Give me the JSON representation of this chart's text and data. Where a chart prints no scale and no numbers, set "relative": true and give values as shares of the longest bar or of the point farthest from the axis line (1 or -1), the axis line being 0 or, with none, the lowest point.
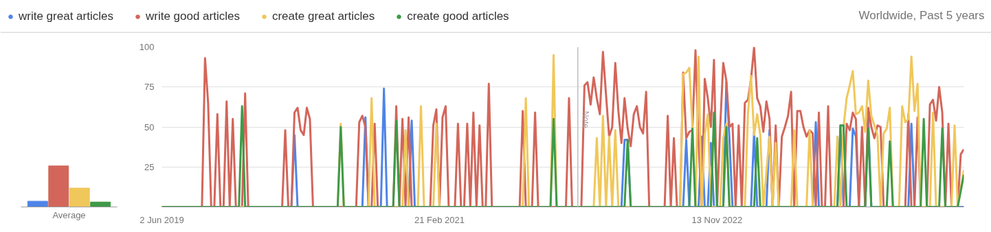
{
  "chart_data": [
    {
      "type": "bar",
      "xlabel": "Average",
      "relative": true,
      "categories": [
        null,
        null,
        null,
        null
      ],
      "values": [
        0.14,
        1,
        0.46,
        0.12
      ],
      "colors": [
        "#4f84e8",
        "#d3665a",
        "#f0c75a",
        "#3f9a47"
      ]
    },
    {
      "type": "line",
      "annotations": [
        "Worldwide, Past 5 years"
      ],
      "legend": "top",
      "grid": "y",
      "xlim": [
        "2019-06-02",
        "2024-05-26"
      ],
      "ylim": [
        0,
        100
      ],
      "xticks": [
        {
          "value": "2019-06-02",
          "label": "2 Jun 2019"
        },
        {
          "value": "2021-02-21",
          "label": "21 Feb 2021"
        },
        {
          "value": "2022-11-13",
          "label": "13 Nov 2022"
        }
      ],
      "yticks": [
        25,
        50,
        75,
        100
      ],
      "ref_lines": [
        {
          "axis": "x",
          "value": "2022-01-01",
          "label": "Note"
        }
      ],
      "series": [
        {
          "name": "write great articles",
          "color": "#4f84e8",
          "x": [
            "2019-06-02",
            "2020-03-22",
            "2020-03-29",
            "2020-04-05",
            "2020-08-30",
            "2020-09-06",
            "2020-09-13",
            "2020-10-11",
            "2020-10-18",
            "2020-10-25",
            "2020-12-13",
            "2020-12-20",
            "2020-12-27",
            "2022-04-10",
            "2022-04-17",
            "2022-04-24",
            "2022-05-01",
            "2022-08-28",
            "2022-09-04",
            "2022-09-11",
            "2022-10-02",
            "2022-10-09",
            "2022-10-16",
            "2022-10-23",
            "2022-10-30",
            "2022-11-06",
            "2022-11-27",
            "2022-12-04",
            "2022-12-11",
            "2022-12-18",
            "2023-01-29",
            "2023-02-05",
            "2023-02-12",
            "2023-03-05",
            "2023-03-12",
            "2023-03-19",
            "2023-06-18",
            "2023-06-25",
            "2023-07-02",
            "2023-08-13",
            "2023-08-20",
            "2023-08-27",
            "2023-09-10",
            "2023-09-17",
            "2023-09-24",
            "2023-10-01",
            "2023-10-15",
            "2023-10-22",
            "2023-10-29",
            "2024-01-21",
            "2024-01-28",
            "2024-02-04",
            "2024-05-26"
          ],
          "values": [
            0,
            0,
            45,
            0,
            0,
            56,
            0,
            0,
            74,
            0,
            0,
            54,
            0,
            0,
            42,
            42,
            0,
            0,
            42,
            0,
            0,
            44,
            0,
            0,
            40,
            0,
            0,
            78,
            43,
            0,
            0,
            47,
            0,
            0,
            48,
            0,
            0,
            53,
            0,
            0,
            51,
            0,
            0,
            49,
            44,
            0,
            0,
            56,
            0,
            0,
            52,
            0,
            0
          ]
        },
        {
          "name": "write good articles",
          "color": "#d3665a",
          "x": [
            "2019-06-02",
            "2019-09-01",
            "2019-09-08",
            "2019-09-15",
            "2019-09-22",
            "2019-09-29",
            "2019-10-06",
            "2019-10-13",
            "2019-10-20",
            "2019-10-27",
            "2019-11-03",
            "2019-11-10",
            "2019-11-17",
            "2019-12-01",
            "2019-12-08",
            "2019-12-15",
            "2020-03-01",
            "2020-03-08",
            "2020-03-15",
            "2020-03-22",
            "2020-03-29",
            "2020-04-05",
            "2020-04-12",
            "2020-04-19",
            "2020-04-26",
            "2020-05-03",
            "2020-05-10",
            "2020-08-16",
            "2020-08-23",
            "2020-08-30",
            "2020-09-06",
            "2020-09-13",
            "2020-09-20",
            "2020-09-27",
            "2020-10-04",
            "2020-11-08",
            "2020-11-15",
            "2020-11-22",
            "2020-11-29",
            "2020-12-06",
            "2020-12-13",
            "2020-12-20",
            "2021-01-31",
            "2021-02-07",
            "2021-02-14",
            "2021-02-21",
            "2021-02-28",
            "2021-03-07",
            "2021-03-14",
            "2021-03-28",
            "2021-04-04",
            "2021-04-11",
            "2021-04-18",
            "2021-04-25",
            "2021-05-02",
            "2021-05-09",
            "2021-05-16",
            "2021-05-23",
            "2021-05-30",
            "2021-06-06",
            "2021-06-13",
            "2021-06-20",
            "2021-08-22",
            "2021-08-29",
            "2021-09-05",
            "2021-09-19",
            "2021-09-26",
            "2021-10-03",
            "2021-12-05",
            "2021-12-12",
            "2021-12-19",
            "2022-01-09",
            "2022-01-16",
            "2022-01-23",
            "2022-01-30",
            "2022-02-06",
            "2022-02-13",
            "2022-02-20",
            "2022-02-27",
            "2022-03-06",
            "2022-03-13",
            "2022-03-20",
            "2022-03-27",
            "2022-04-03",
            "2022-04-10",
            "2022-04-17",
            "2022-04-24",
            "2022-05-01",
            "2022-05-08",
            "2022-05-15",
            "2022-05-22",
            "2022-05-29",
            "2022-06-05",
            "2022-06-12",
            "2022-07-17",
            "2022-07-24",
            "2022-07-31",
            "2022-08-07",
            "2022-08-14",
            "2022-08-21",
            "2022-08-28",
            "2022-09-04",
            "2022-09-11",
            "2022-09-18",
            "2022-09-25",
            "2022-10-02",
            "2022-10-09",
            "2022-10-16",
            "2022-10-23",
            "2022-10-30",
            "2022-11-06",
            "2022-11-13",
            "2022-11-20",
            "2022-11-27",
            "2022-12-04",
            "2022-12-11",
            "2022-12-18",
            "2022-12-25",
            "2023-01-01",
            "2023-01-08",
            "2023-01-15",
            "2023-01-22",
            "2023-01-29",
            "2023-02-05",
            "2023-02-12",
            "2023-02-19",
            "2023-02-26",
            "2023-03-05",
            "2023-03-12",
            "2023-03-19",
            "2023-03-26",
            "2023-04-02",
            "2023-04-09",
            "2023-04-16",
            "2023-04-23",
            "2023-04-30",
            "2023-05-07",
            "2023-05-14",
            "2023-05-21",
            "2023-05-28",
            "2023-06-04",
            "2023-06-11",
            "2023-06-18",
            "2023-06-25",
            "2023-07-02",
            "2023-07-09",
            "2023-07-16",
            "2023-07-23",
            "2023-07-30",
            "2023-08-27",
            "2023-09-03",
            "2023-09-10",
            "2023-09-17",
            "2023-09-24",
            "2023-10-01",
            "2023-10-08",
            "2023-10-15",
            "2023-10-22",
            "2023-10-29",
            "2023-11-05",
            "2023-11-12",
            "2023-11-19",
            "2023-11-26",
            "2024-01-14",
            "2024-01-21",
            "2024-01-28",
            "2024-02-04",
            "2024-02-11",
            "2024-02-18",
            "2024-03-03",
            "2024-03-10",
            "2024-03-17",
            "2024-03-24",
            "2024-03-31",
            "2024-04-07",
            "2024-04-14",
            "2024-04-21",
            "2024-04-28",
            "2024-05-12",
            "2024-05-19",
            "2024-05-26"
          ],
          "values": [
            0,
            0,
            93,
            65,
            0,
            0,
            58,
            0,
            0,
            66,
            0,
            55,
            0,
            0,
            71,
            0,
            0,
            48,
            0,
            0,
            59,
            62,
            48,
            45,
            62,
            55,
            0,
            0,
            53,
            57,
            50,
            0,
            0,
            52,
            0,
            0,
            63,
            0,
            55,
            0,
            56,
            0,
            0,
            51,
            61,
            0,
            56,
            63,
            0,
            0,
            52,
            0,
            0,
            52,
            0,
            59,
            0,
            51,
            0,
            0,
            77,
            0,
            0,
            60,
            0,
            0,
            59,
            0,
            0,
            68,
            0,
            0,
            76,
            78,
            64,
            81,
            68,
            58,
            97,
            70,
            44,
            50,
            90,
            60,
            40,
            68,
            49,
            38,
            58,
            63,
            50,
            46,
            72,
            0,
            0,
            57,
            0,
            43,
            0,
            0,
            84,
            43,
            47,
            48,
            98,
            40,
            0,
            80,
            68,
            50,
            92,
            0,
            50,
            90,
            79,
            50,
            52,
            0,
            51,
            0,
            65,
            67,
            80,
            100,
            68,
            63,
            47,
            66,
            55,
            0,
            51,
            0,
            44,
            50,
            57,
            72,
            0,
            60,
            60,
            50,
            44,
            48,
            46,
            0,
            59,
            0,
            0,
            63,
            0,
            0,
            52,
            48,
            59,
            55,
            0,
            50,
            0,
            62,
            50,
            43,
            51,
            50,
            0,
            0,
            58,
            0,
            0,
            56,
            0,
            0,
            64,
            67,
            54,
            75,
            59,
            0,
            52,
            0,
            0,
            33,
            36
          ]
        },
        {
          "name": "create great articles",
          "color": "#f0c75a",
          "x": [
            "2019-06-02",
            "2020-07-05",
            "2020-07-12",
            "2020-07-19",
            "2020-09-13",
            "2020-09-20",
            "2020-09-27",
            "2020-11-29",
            "2020-12-06",
            "2020-12-13",
            "2021-01-03",
            "2021-01-10",
            "2021-01-17",
            "2021-02-07",
            "2021-02-14",
            "2021-02-21",
            "2021-08-29",
            "2021-09-05",
            "2021-09-12",
            "2021-10-31",
            "2021-11-07",
            "2021-11-14",
            "2022-02-06",
            "2022-02-13",
            "2022-02-20",
            "2022-02-27",
            "2022-03-06",
            "2022-03-13",
            "2022-03-20",
            "2022-03-27",
            "2022-04-03",
            "2022-08-21",
            "2022-08-28",
            "2022-09-04",
            "2022-09-11",
            "2022-09-18",
            "2022-09-25",
            "2022-10-02",
            "2022-10-09",
            "2022-10-16",
            "2022-10-23",
            "2022-10-30",
            "2022-11-20",
            "2022-11-27",
            "2022-12-04",
            "2022-12-11",
            "2023-01-15",
            "2023-01-22",
            "2023-01-29",
            "2023-02-05",
            "2023-02-12",
            "2023-02-19",
            "2023-02-26",
            "2023-03-12",
            "2023-03-19",
            "2023-03-26",
            "2023-04-02",
            "2023-04-30",
            "2023-05-07",
            "2023-05-14",
            "2023-06-04",
            "2023-06-11",
            "2023-06-18",
            "2023-08-06",
            "2023-08-13",
            "2023-08-20",
            "2023-08-27",
            "2023-09-03",
            "2023-09-10",
            "2023-09-17",
            "2023-09-24",
            "2023-10-01",
            "2023-10-08",
            "2023-10-15",
            "2023-10-22",
            "2023-10-29",
            "2023-11-05",
            "2023-11-12",
            "2023-11-19",
            "2023-11-26",
            "2023-12-03",
            "2023-12-10",
            "2023-12-17",
            "2023-12-31",
            "2024-01-07",
            "2024-01-14",
            "2024-01-21",
            "2024-01-28",
            "2024-02-04",
            "2024-02-11",
            "2024-02-18",
            "2024-03-10",
            "2024-03-17",
            "2024-03-24",
            "2024-04-28",
            "2024-05-05",
            "2024-05-12",
            "2024-05-26"
          ],
          "values": [
            0,
            0,
            52,
            0,
            0,
            68,
            0,
            0,
            48,
            0,
            0,
            63,
            0,
            0,
            52,
            0,
            0,
            68,
            0,
            0,
            95,
            0,
            0,
            43,
            0,
            57,
            0,
            44,
            0,
            48,
            0,
            0,
            83,
            84,
            87,
            50,
            0,
            94,
            0,
            45,
            58,
            0,
            0,
            43,
            52,
            0,
            0,
            58,
            82,
            45,
            58,
            45,
            0,
            44,
            0,
            40,
            0,
            0,
            48,
            0,
            0,
            48,
            0,
            0,
            44,
            0,
            50,
            68,
            76,
            85,
            58,
            59,
            63,
            47,
            79,
            57,
            51,
            45,
            0,
            46,
            49,
            62,
            0,
            0,
            63,
            53,
            55,
            94,
            60,
            77,
            0,
            0,
            59,
            0,
            0,
            51,
            0,
            23
          ]
        },
        {
          "name": "create good articles",
          "color": "#3f9a47",
          "x": [
            "2019-06-02",
            "2019-11-24",
            "2019-12-01",
            "2019-12-08",
            "2020-07-05",
            "2020-07-12",
            "2020-07-19",
            "2020-11-08",
            "2020-11-15",
            "2020-11-22",
            "2021-10-31",
            "2021-11-07",
            "2021-11-14",
            "2022-04-17",
            "2022-04-24",
            "2022-05-01",
            "2022-09-11",
            "2022-09-18",
            "2022-09-25",
            "2022-10-30",
            "2022-11-06",
            "2022-11-13",
            "2022-11-27",
            "2022-12-04",
            "2022-12-11",
            "2023-02-05",
            "2023-02-12",
            "2023-02-19",
            "2023-08-13",
            "2023-08-20",
            "2023-08-27",
            "2023-09-03",
            "2023-10-15",
            "2023-10-22",
            "2023-10-29",
            "2023-12-03",
            "2023-12-10",
            "2023-12-17",
            "2024-02-18",
            "2024-02-25",
            "2024-03-03",
            "2024-03-31",
            "2024-04-07",
            "2024-04-14",
            "2024-05-12",
            "2024-05-19",
            "2024-05-26"
          ],
          "values": [
            0,
            0,
            63,
            0,
            0,
            50,
            0,
            0,
            54,
            0,
            0,
            55,
            0,
            0,
            42,
            0,
            0,
            49,
            0,
            0,
            59,
            0,
            0,
            50,
            0,
            0,
            43,
            0,
            0,
            51,
            51,
            0,
            0,
            49,
            0,
            0,
            41,
            0,
            0,
            55,
            0,
            0,
            49,
            0,
            0,
            10,
            20
          ]
        }
      ]
    }
  ]
}
